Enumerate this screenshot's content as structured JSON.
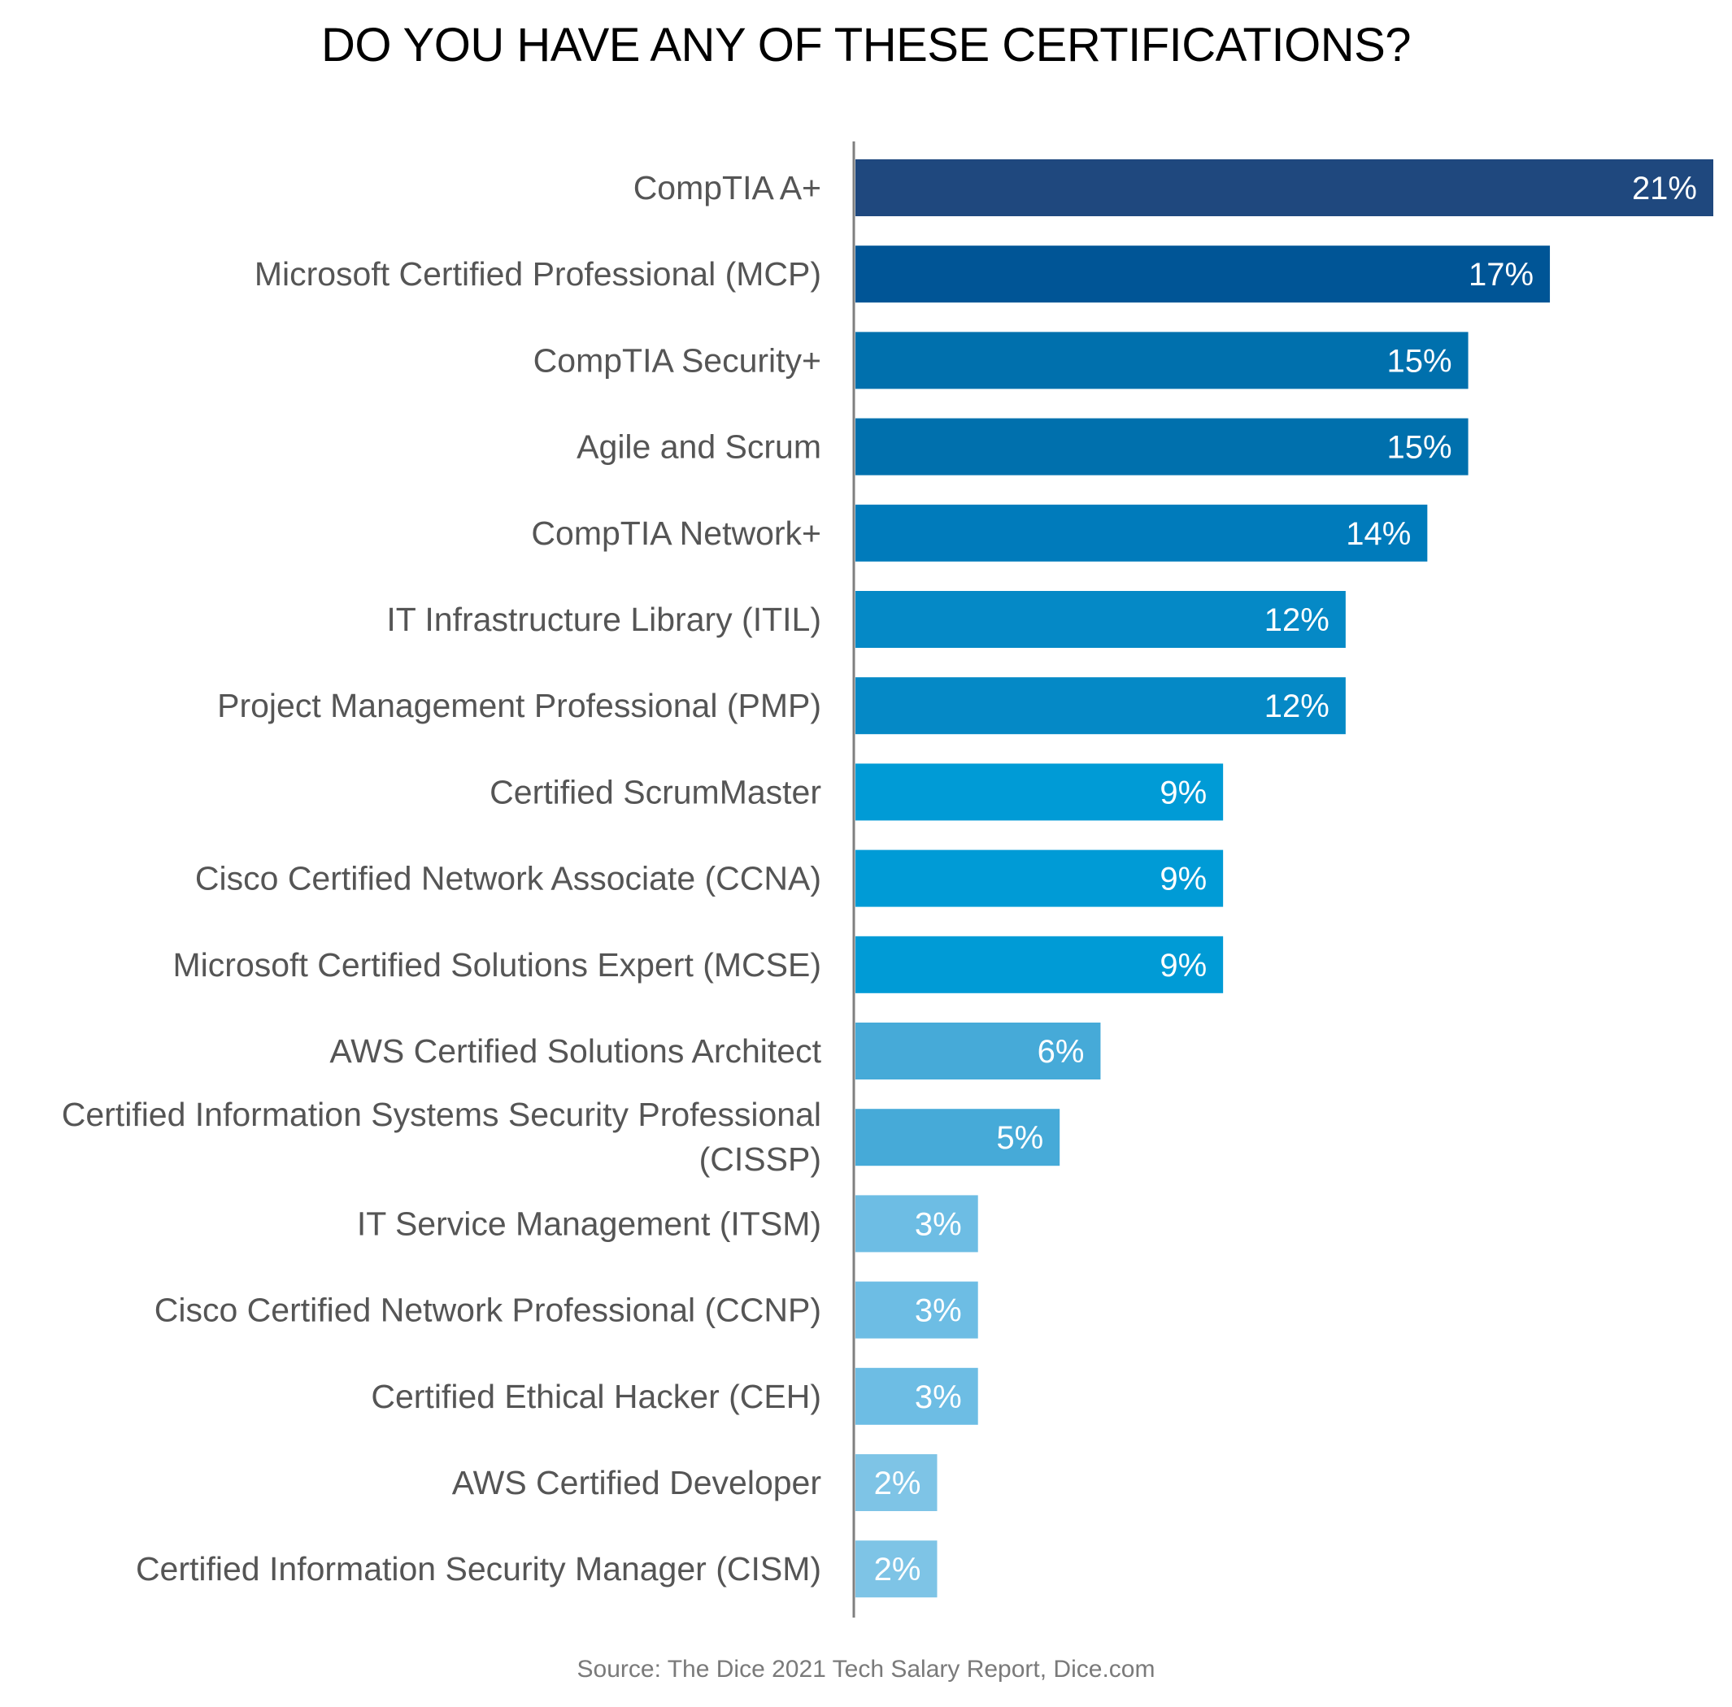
{
  "chart_data": {
    "type": "bar",
    "orientation": "horizontal",
    "title": "DO YOU HAVE ANY OF THESE CERTIFICATIONS?",
    "categories": [
      "CompTIA A+",
      "Microsoft Certified Professional (MCP)",
      "CompTIA Security+",
      "Agile and Scrum",
      "CompTIA Network+",
      "IT Infrastructure Library (ITIL)",
      "Project Management Professional (PMP)",
      "Certified ScrumMaster",
      "Cisco Certified Network Associate (CCNA)",
      "Microsoft Certified Solutions Expert (MCSE)",
      "AWS Certified Solutions Architect",
      "Certified Information Systems Security Professional (CISSP)",
      "IT Service Management (ITSM)",
      "Cisco Certified Network Professional (CCNP)",
      "Certified Ethical Hacker (CEH)",
      "AWS Certified Developer",
      "Certified Information Security Manager (CISM)"
    ],
    "values": [
      21,
      17,
      15,
      15,
      14,
      12,
      12,
      9,
      9,
      9,
      6,
      5,
      3,
      3,
      3,
      2,
      2
    ],
    "value_labels": [
      "21%",
      "17%",
      "15%",
      "15%",
      "14%",
      "12%",
      "12%",
      "9%",
      "9%",
      "9%",
      "6%",
      "5%",
      "3%",
      "3%",
      "3%",
      "2%",
      "2%"
    ],
    "bar_colors": [
      "#1f487e",
      "#005596",
      "#0070ad",
      "#0070ad",
      "#007bbb",
      "#0589c6",
      "#0589c6",
      "#009bd6",
      "#009bd6",
      "#009bd6",
      "#46aad8",
      "#46aad8",
      "#6dbde4",
      "#6dbde4",
      "#6dbde4",
      "#7ec4e6",
      "#7ec4e6"
    ],
    "xlim": [
      0,
      21
    ],
    "xlabel": "",
    "ylabel": "",
    "grid": false,
    "legend": "none",
    "source": "Source: The Dice 2021 Tech Salary Report, Dice.com"
  }
}
